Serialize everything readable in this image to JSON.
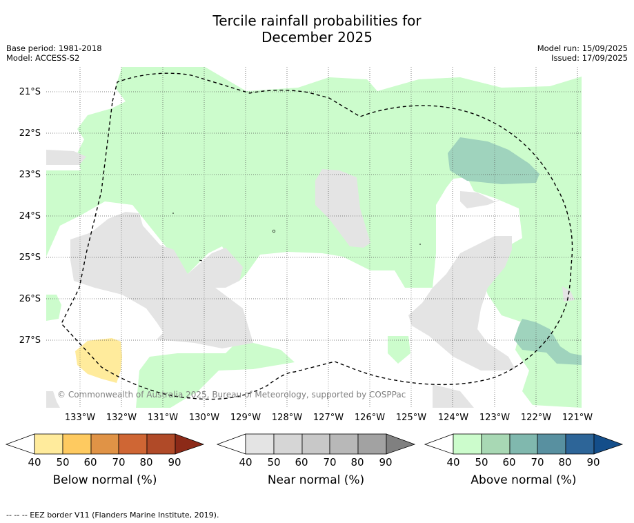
{
  "title_line1": "Tercile rainfall probabilities for",
  "title_line2": "December 2025",
  "meta": {
    "base_period": "Base period: 1981-2018",
    "model": "Model: ACCESS-S2",
    "model_run": "Model run: 15/09/2025",
    "issued": "Issued: 17/09/2025"
  },
  "map": {
    "lat_labels": [
      "21°S",
      "22°S",
      "23°S",
      "24°S",
      "25°S",
      "26°S",
      "27°S"
    ],
    "lon_labels": [
      "133°W",
      "132°W",
      "131°W",
      "130°W",
      "129°W",
      "128°W",
      "127°W",
      "126°W",
      "125°W",
      "124°W",
      "123°W",
      "122°W",
      "121°W"
    ],
    "copyright": "© Commonwealth of Australia 2025, Bureau of Meteorology, supported by COSPPac",
    "grid": true,
    "colors": {
      "below_40": "#FFEB9C",
      "near_40": "#E4E4E4",
      "above_40": "#CCFCCC",
      "above_50": "#9FD3BD"
    }
  },
  "colorbars": [
    {
      "title": "Below normal (%)",
      "ticks": [
        "40",
        "50",
        "60",
        "70",
        "80",
        "90"
      ],
      "colors": [
        "#FFEB9C",
        "#FECA60",
        "#E09346",
        "#CF6634",
        "#B04A28",
        "#8C2A18"
      ]
    },
    {
      "title": "Near normal (%)",
      "ticks": [
        "40",
        "50",
        "60",
        "70",
        "80",
        "90"
      ],
      "colors": [
        "#E4E4E4",
        "#D6D6D6",
        "#C8C8C8",
        "#B8B8B8",
        "#A2A2A2",
        "#808080"
      ]
    },
    {
      "title": "Above normal (%)",
      "ticks": [
        "40",
        "50",
        "60",
        "70",
        "80",
        "90"
      ],
      "colors": [
        "#CCFCCC",
        "#A8D8B4",
        "#80B8AE",
        "#5890A0",
        "#2D6598",
        "#144E8A"
      ]
    }
  ],
  "footer": "--  --  -- EEZ border V11 (Flanders Marine Institute, 2019)."
}
